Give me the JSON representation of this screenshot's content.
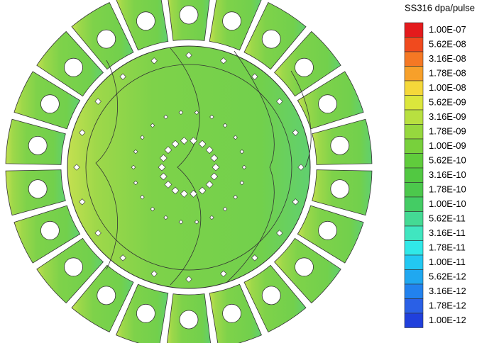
{
  "legend": {
    "title": "SS316 dpa/pulse",
    "levels": [
      {
        "label": "1.00E-07",
        "color": "#e41a1c"
      },
      {
        "label": "5.62E-08",
        "color": "#f04a1e"
      },
      {
        "label": "3.16E-08",
        "color": "#f57824"
      },
      {
        "label": "1.78E-08",
        "color": "#f7a02a"
      },
      {
        "label": "1.00E-08",
        "color": "#f5d83a"
      },
      {
        "label": "5.62E-09",
        "color": "#dbe63c"
      },
      {
        "label": "3.16E-09",
        "color": "#b8e040"
      },
      {
        "label": "1.78E-09",
        "color": "#96d83e"
      },
      {
        "label": "1.00E-09",
        "color": "#78d03c"
      },
      {
        "label": "5.62E-10",
        "color": "#60cc3c"
      },
      {
        "label": "3.16E-10",
        "color": "#52c842"
      },
      {
        "label": "1.78E-10",
        "color": "#4cc84c"
      },
      {
        "label": "1.00E-10",
        "color": "#44cc64"
      },
      {
        "label": "5.62E-11",
        "color": "#44da94"
      },
      {
        "label": "3.16E-11",
        "color": "#40e6c0"
      },
      {
        "label": "1.78E-11",
        "color": "#30e8e8"
      },
      {
        "label": "1.00E-11",
        "color": "#22c8f2"
      },
      {
        "label": "5.62E-12",
        "color": "#20a8f0"
      },
      {
        "label": "3.16E-12",
        "color": "#2282ee"
      },
      {
        "label": "1.78E-12",
        "color": "#2a60e6"
      },
      {
        "label": "1.00E-12",
        "color": "#2040dc"
      }
    ]
  }
}
